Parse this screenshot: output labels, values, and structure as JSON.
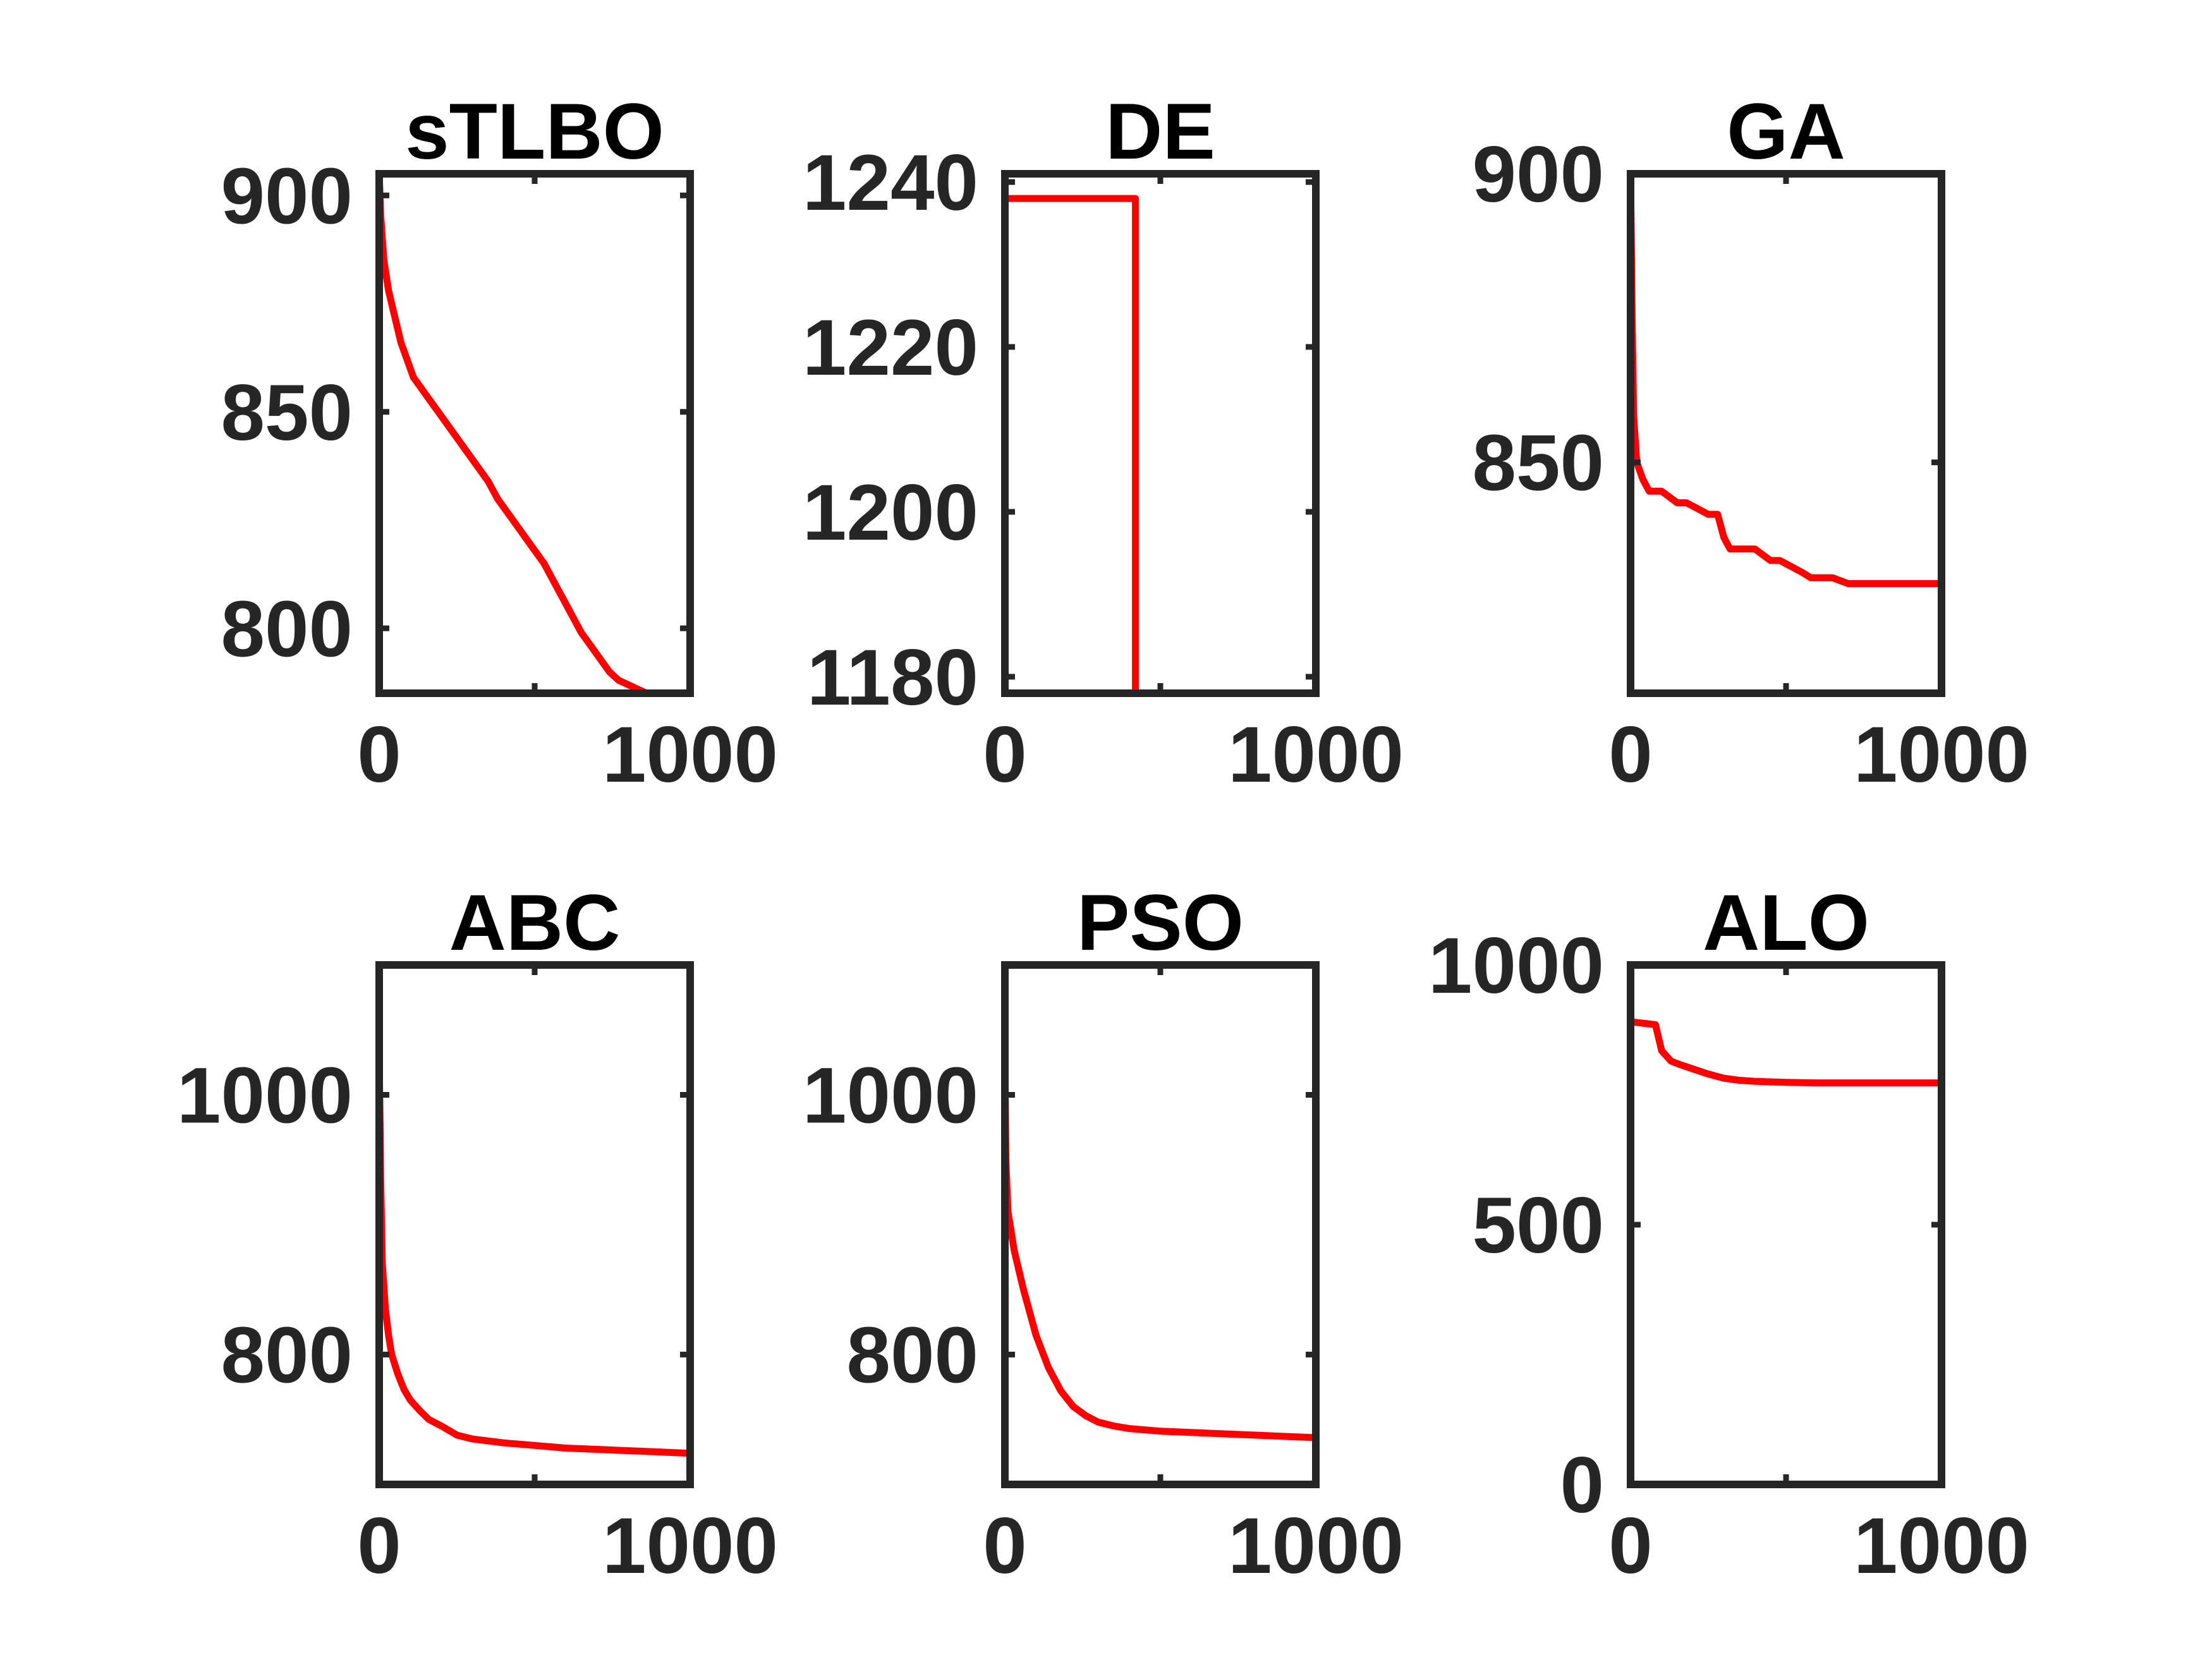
{
  "chart_data": [
    {
      "type": "line",
      "title": "sTLBO",
      "xlim": [
        0,
        1000
      ],
      "ylim": [
        785,
        905
      ],
      "xticks": [
        0,
        500,
        1000
      ],
      "xtick_labels": [
        "0",
        "",
        "1000"
      ],
      "yticks": [
        800,
        850,
        900
      ],
      "ytick_labels": [
        "800",
        "850",
        "900"
      ],
      "grid": false,
      "series": [
        {
          "color": "#ff0000",
          "x": [
            0,
            5,
            15,
            30,
            50,
            70,
            90,
            110,
            130,
            150,
            170,
            200,
            230,
            260,
            290,
            320,
            350,
            380,
            410,
            440,
            470,
            500,
            530,
            560,
            590,
            620,
            650,
            680,
            710,
            740,
            770,
            800,
            830,
            860,
            890,
            920,
            950,
            980,
            1000
          ],
          "y": [
            905,
            895,
            885,
            878,
            872,
            866,
            862,
            858,
            856,
            854,
            852,
            849,
            846,
            843,
            840,
            837,
            834,
            830,
            827,
            824,
            821,
            818,
            815,
            811,
            807,
            803,
            799,
            796,
            793,
            790,
            788,
            787,
            786,
            785,
            785,
            785,
            785,
            785,
            785
          ]
        }
      ]
    },
    {
      "type": "line",
      "title": "DE",
      "xlim": [
        0,
        1000
      ],
      "ylim": [
        1178,
        1241
      ],
      "xticks": [
        0,
        500,
        1000
      ],
      "xtick_labels": [
        "0",
        "",
        "1000"
      ],
      "yticks": [
        1180,
        1200,
        1220,
        1240
      ],
      "ytick_labels": [
        "1180",
        "1200",
        "1220",
        "1240"
      ],
      "grid": false,
      "series": [
        {
          "color": "#ff0000",
          "x": [
            0,
            420,
            420,
            1000
          ],
          "y": [
            1238,
            1238,
            1178,
            1178
          ]
        }
      ]
    },
    {
      "type": "line",
      "title": "GA",
      "xlim": [
        0,
        1000
      ],
      "ylim": [
        810,
        900
      ],
      "xticks": [
        0,
        500,
        1000
      ],
      "xtick_labels": [
        "0",
        "",
        "1000"
      ],
      "yticks": [
        850,
        900
      ],
      "ytick_labels": [
        "850",
        "900"
      ],
      "grid": false,
      "series": [
        {
          "color": "#ff0000",
          "x": [
            0,
            5,
            10,
            20,
            40,
            60,
            100,
            150,
            180,
            250,
            280,
            300,
            320,
            350,
            400,
            450,
            480,
            550,
            580,
            600,
            650,
            700,
            750,
            800,
            900,
            1000
          ],
          "y": [
            900,
            875,
            858,
            850,
            847,
            845,
            845,
            843,
            843,
            841,
            841,
            837,
            835,
            835,
            835,
            833,
            833,
            831,
            830,
            830,
            830,
            829,
            829,
            829,
            829,
            829
          ]
        }
      ]
    },
    {
      "type": "line",
      "title": "ABC",
      "xlim": [
        0,
        1000
      ],
      "ylim": [
        700,
        1100
      ],
      "xticks": [
        0,
        500,
        1000
      ],
      "xtick_labels": [
        "0",
        "",
        "1000"
      ],
      "yticks": [
        800,
        1000
      ],
      "ytick_labels": [
        "800",
        "1000"
      ],
      "grid": false,
      "series": [
        {
          "color": "#ff0000",
          "x": [
            0,
            5,
            10,
            20,
            30,
            40,
            60,
            80,
            100,
            130,
            160,
            200,
            250,
            300,
            400,
            500,
            600,
            700,
            800,
            900,
            1000
          ],
          "y": [
            1030,
            930,
            870,
            835,
            815,
            800,
            785,
            773,
            765,
            757,
            750,
            745,
            738,
            735,
            732,
            730,
            728,
            727,
            726,
            725,
            724
          ]
        }
      ]
    },
    {
      "type": "line",
      "title": "PSO",
      "xlim": [
        0,
        1000
      ],
      "ylim": [
        700,
        1100
      ],
      "xticks": [
        0,
        500,
        1000
      ],
      "xtick_labels": [
        "0",
        "",
        "1000"
      ],
      "yticks": [
        800,
        1000
      ],
      "ytick_labels": [
        "800",
        "1000"
      ],
      "grid": false,
      "series": [
        {
          "color": "#ff0000",
          "x": [
            0,
            3,
            10,
            30,
            60,
            100,
            140,
            180,
            220,
            260,
            300,
            350,
            400,
            500,
            600,
            700,
            800,
            900,
            1000
          ],
          "y": [
            1035,
            950,
            910,
            880,
            850,
            815,
            790,
            772,
            760,
            753,
            748,
            745,
            743,
            741,
            740,
            739,
            738,
            737,
            736
          ]
        }
      ]
    },
    {
      "type": "line",
      "title": "ALO",
      "xlim": [
        0,
        1000
      ],
      "ylim": [
        0,
        1000
      ],
      "xticks": [
        0,
        500,
        1000
      ],
      "xtick_labels": [
        "0",
        "",
        "1000"
      ],
      "yticks": [
        0,
        500,
        1000
      ],
      "ytick_labels": [
        "0",
        "500",
        "1000"
      ],
      "grid": false,
      "series": [
        {
          "color": "#ff0000",
          "x": [
            0,
            0,
            10,
            80,
            100,
            130,
            160,
            200,
            250,
            300,
            350,
            400,
            500,
            600,
            800,
            1000
          ],
          "y": [
            0,
            890,
            890,
            885,
            835,
            815,
            808,
            800,
            790,
            782,
            778,
            776,
            774,
            773,
            773,
            773
          ]
        }
      ]
    }
  ]
}
